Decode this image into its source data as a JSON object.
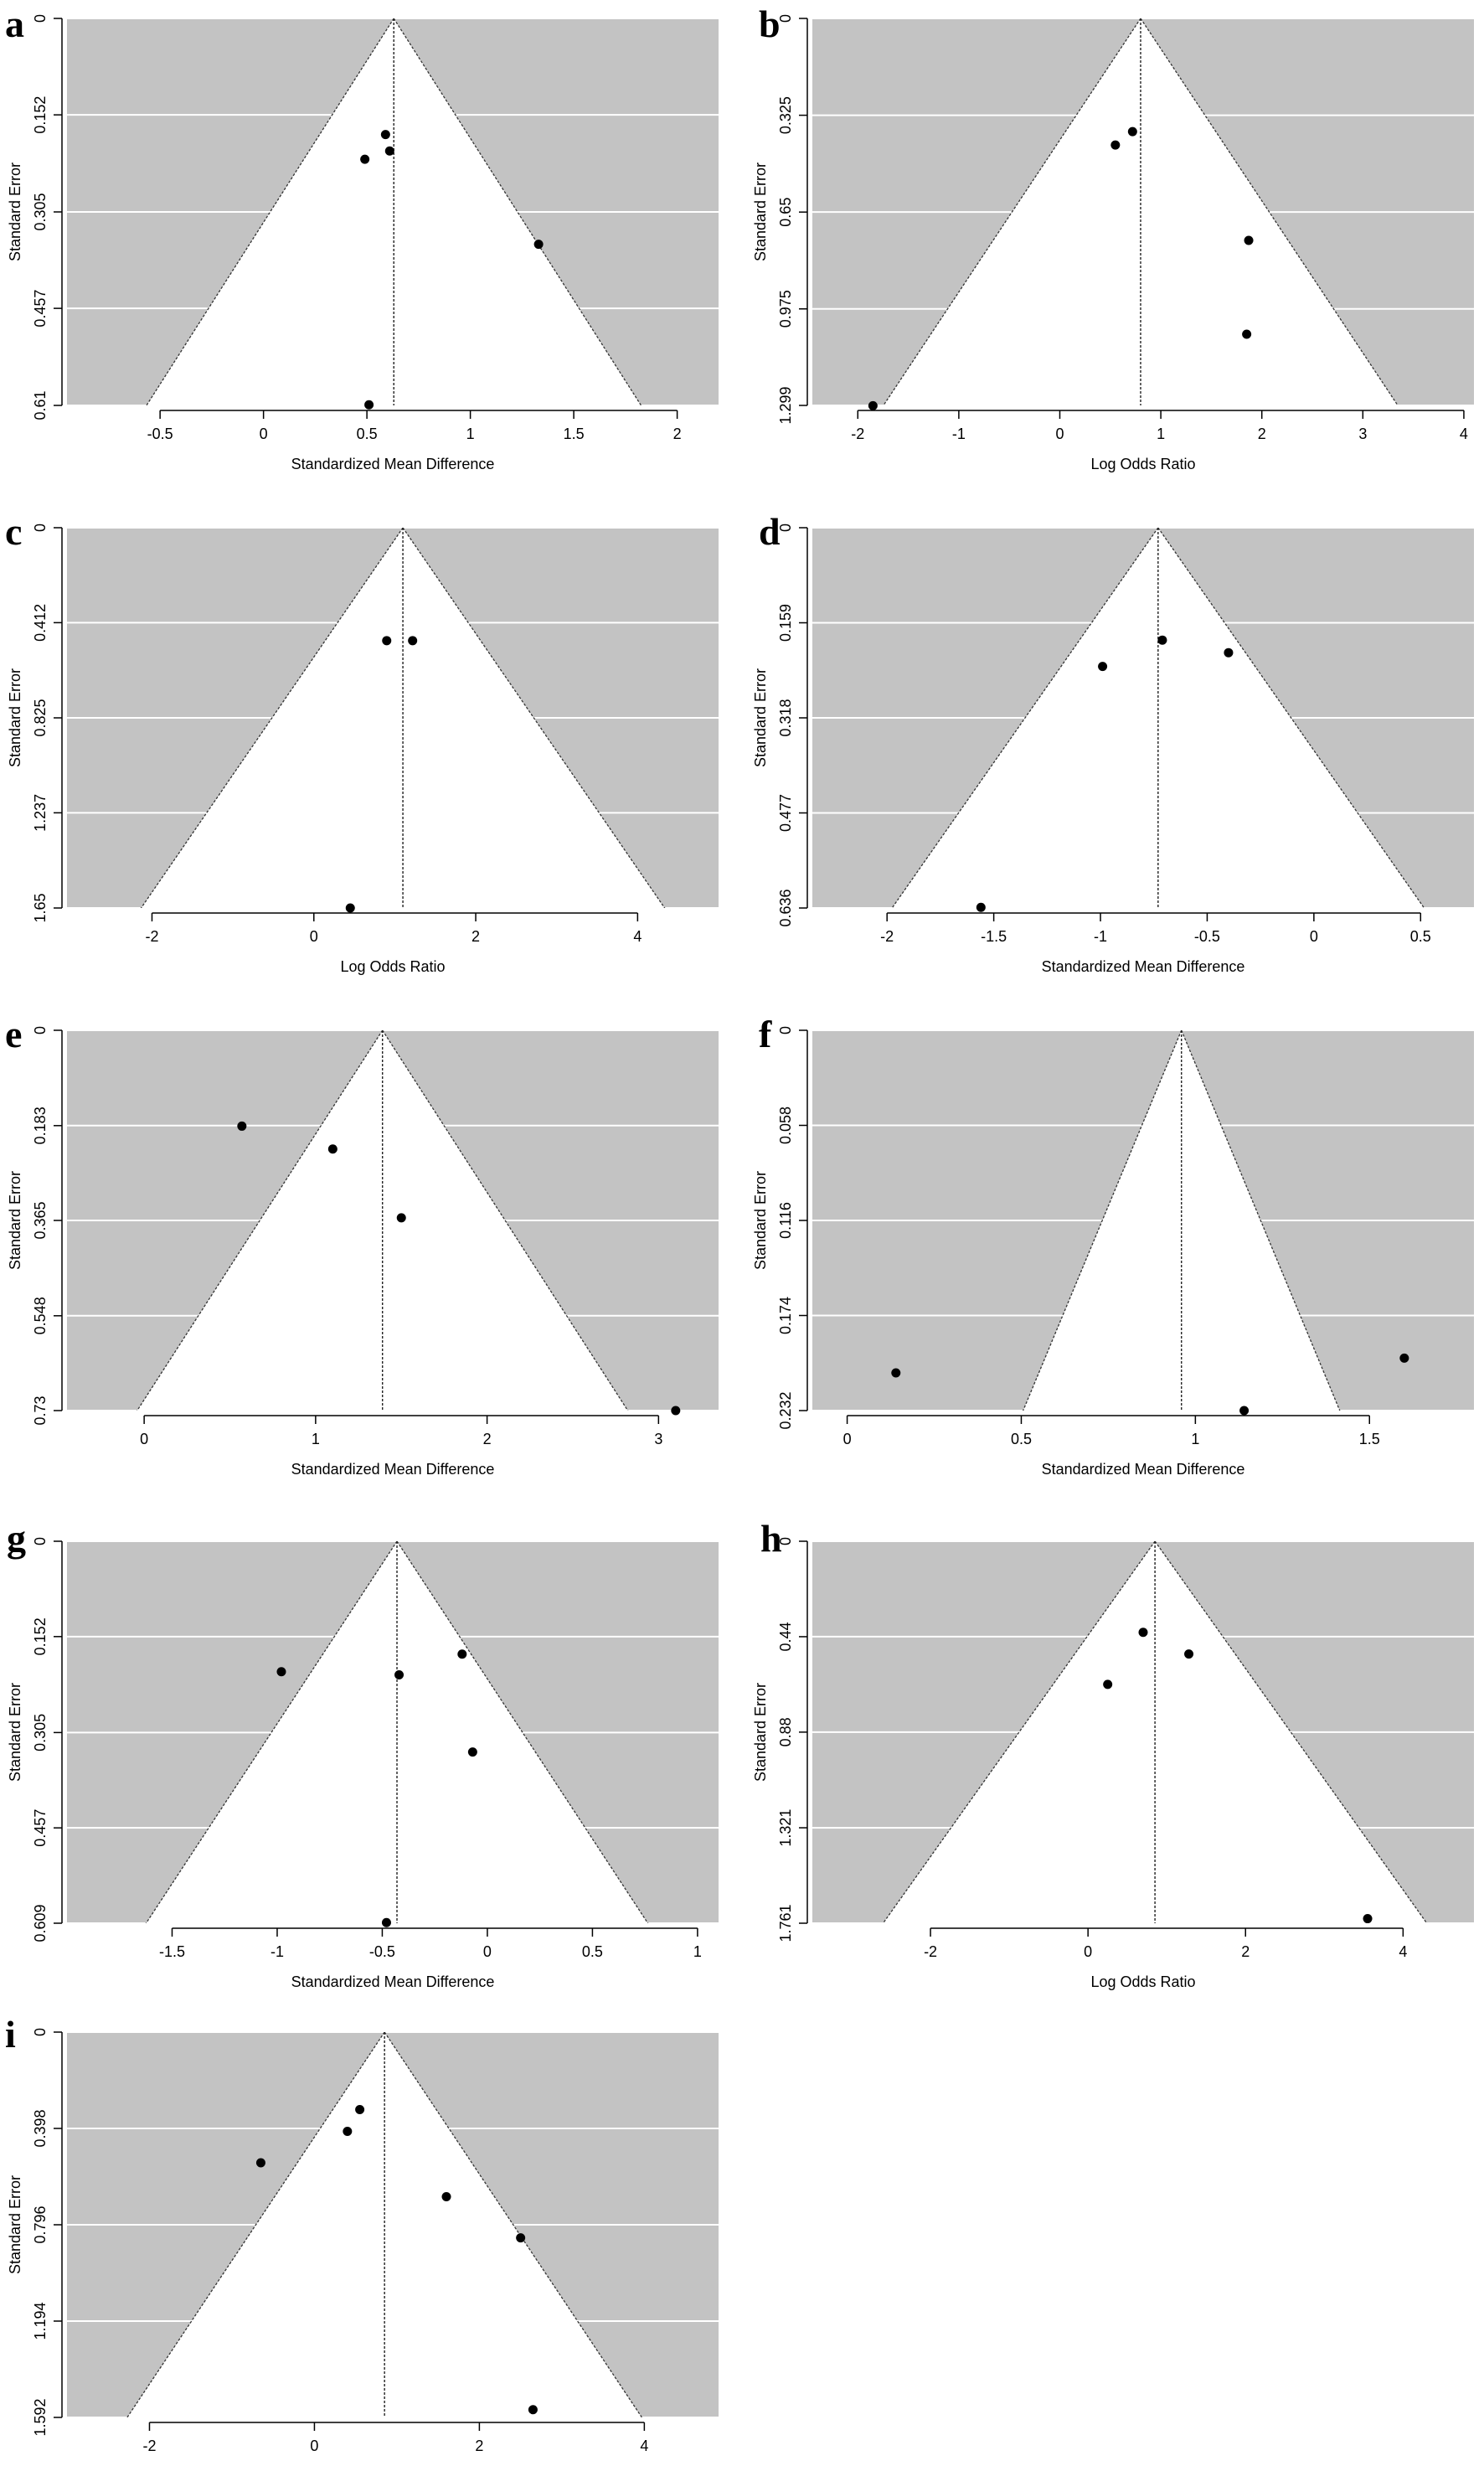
{
  "chart_data": [
    {
      "panel": "a",
      "type": "scatter",
      "xlabel": "Standardized Mean Difference",
      "ylabel": "Standard Error",
      "xticks": [
        "-0.5",
        "0",
        "0.5",
        "1",
        "1.5",
        "2"
      ],
      "yticks": [
        "0",
        "0.152",
        "0.305",
        "0.457",
        "0.61"
      ],
      "xlim": [
        -0.95,
        2.2
      ],
      "ylim": [
        0.61,
        0
      ],
      "estimate": 0.63,
      "points": [
        {
          "x": 0.59,
          "y": 0.183
        },
        {
          "x": 0.61,
          "y": 0.209
        },
        {
          "x": 0.49,
          "y": 0.222
        },
        {
          "x": 1.33,
          "y": 0.356
        },
        {
          "x": 0.51,
          "y": 0.609
        }
      ]
    },
    {
      "panel": "b",
      "type": "scatter",
      "xlabel": "Log Odds Ratio",
      "ylabel": "Standard Error",
      "xticks": [
        "-2",
        "-1",
        "0",
        "1",
        "2",
        "3",
        "4"
      ],
      "yticks": [
        "0",
        "0.325",
        "0.65",
        "0.975",
        "1.299"
      ],
      "xlim": [
        -2.45,
        4.1
      ],
      "ylim": [
        1.299,
        0
      ],
      "estimate": 0.8,
      "points": [
        {
          "x": 0.72,
          "y": 0.38
        },
        {
          "x": 0.55,
          "y": 0.425
        },
        {
          "x": 1.87,
          "y": 0.745
        },
        {
          "x": 1.85,
          "y": 1.06
        },
        {
          "x": -1.85,
          "y": 1.3
        }
      ]
    },
    {
      "panel": "c",
      "type": "scatter",
      "xlabel": "Log Odds Ratio",
      "ylabel": "Standard Error",
      "xticks": [
        "-2",
        "0",
        "2",
        "4"
      ],
      "yticks": [
        "0",
        "0.412",
        "0.825",
        "1.237",
        "1.65"
      ],
      "xlim": [
        -3.05,
        5.0
      ],
      "ylim": [
        1.65,
        0
      ],
      "estimate": 1.1,
      "points": [
        {
          "x": 0.9,
          "y": 0.49
        },
        {
          "x": 1.22,
          "y": 0.49
        },
        {
          "x": 0.45,
          "y": 1.65
        }
      ]
    },
    {
      "panel": "d",
      "type": "scatter",
      "xlabel": "Standardized Mean Difference",
      "ylabel": "Standard Error",
      "xticks": [
        "-2",
        "-1.5",
        "-1",
        "-0.5",
        "0",
        "0.5"
      ],
      "yticks": [
        "0",
        "0.159",
        "0.318",
        "0.477",
        "0.636"
      ],
      "xlim": [
        -2.35,
        0.75
      ],
      "ylim": [
        0.636,
        0
      ],
      "estimate": -0.73,
      "points": [
        {
          "x": -0.71,
          "y": 0.188
        },
        {
          "x": -0.4,
          "y": 0.209
        },
        {
          "x": -0.99,
          "y": 0.232
        },
        {
          "x": -1.56,
          "y": 0.635
        }
      ]
    },
    {
      "panel": "e",
      "type": "scatter",
      "xlabel": "Standardized Mean Difference",
      "ylabel": "Standard Error",
      "xticks": [
        "0",
        "1",
        "2",
        "3"
      ],
      "yticks": [
        "0",
        "0.183",
        "0.365",
        "0.548",
        "0.73"
      ],
      "xlim": [
        -0.45,
        3.35
      ],
      "ylim": [
        0.73,
        0
      ],
      "estimate": 1.39,
      "points": [
        {
          "x": 0.57,
          "y": 0.184
        },
        {
          "x": 1.1,
          "y": 0.228
        },
        {
          "x": 1.5,
          "y": 0.36
        },
        {
          "x": 3.1,
          "y": 0.73
        }
      ]
    },
    {
      "panel": "f",
      "type": "scatter",
      "xlabel": "Standardized Mean Difference",
      "ylabel": "Standard Error",
      "xticks": [
        "0",
        "0.5",
        "1",
        "1.5"
      ],
      "yticks": [
        "0",
        "0.058",
        "0.116",
        "0.174",
        "0.232"
      ],
      "xlim": [
        -0.1,
        1.8
      ],
      "ylim": [
        0.232,
        0
      ],
      "estimate": 0.96,
      "points": [
        {
          "x": 1.6,
          "y": 0.2
        },
        {
          "x": 0.14,
          "y": 0.209
        },
        {
          "x": 1.14,
          "y": 0.232
        }
      ]
    },
    {
      "panel": "g",
      "type": "scatter",
      "xlabel": "Standardized Mean Difference",
      "ylabel": "Standard Error",
      "xticks": [
        "-1.5",
        "-1",
        "-0.5",
        "0",
        "0.5",
        "1"
      ],
      "yticks": [
        "0",
        "0.152",
        "0.305",
        "0.457",
        "0.609"
      ],
      "xlim": [
        -2.0,
        1.1
      ],
      "ylim": [
        0.609,
        0
      ],
      "estimate": -0.43,
      "points": [
        {
          "x": -0.12,
          "y": 0.18
        },
        {
          "x": -0.98,
          "y": 0.208
        },
        {
          "x": -0.42,
          "y": 0.213
        },
        {
          "x": -0.07,
          "y": 0.336
        },
        {
          "x": -0.48,
          "y": 0.608
        }
      ]
    },
    {
      "panel": "h",
      "type": "scatter",
      "xlabel": "Log Odds Ratio",
      "ylabel": "Standard Error",
      "xticks": [
        "-2",
        "0",
        "2",
        "4"
      ],
      "yticks": [
        "0",
        "0.44",
        "0.88",
        "1.321",
        "1.761"
      ],
      "xlim": [
        -3.5,
        4.9
      ],
      "ylim": [
        1.761,
        0
      ],
      "estimate": 0.85,
      "points": [
        {
          "x": 0.7,
          "y": 0.42
        },
        {
          "x": 1.28,
          "y": 0.52
        },
        {
          "x": 0.25,
          "y": 0.66
        },
        {
          "x": 3.55,
          "y": 1.74
        }
      ]
    },
    {
      "panel": "i",
      "type": "scatter",
      "xlabel": "Log Odds Ratio",
      "ylabel": "Standard Error",
      "xticks": [
        "-2",
        "0",
        "2",
        "4"
      ],
      "yticks": [
        "0",
        "0.398",
        "0.796",
        "1.194",
        "1.592"
      ],
      "xlim": [
        -3.0,
        4.9
      ],
      "ylim": [
        1.592,
        0
      ],
      "estimate": 0.85,
      "points": [
        {
          "x": 0.55,
          "y": 0.32
        },
        {
          "x": 0.4,
          "y": 0.41
        },
        {
          "x": -0.65,
          "y": 0.54
        },
        {
          "x": 1.6,
          "y": 0.68
        },
        {
          "x": 2.5,
          "y": 0.85
        },
        {
          "x": 2.65,
          "y": 1.56
        }
      ]
    }
  ]
}
